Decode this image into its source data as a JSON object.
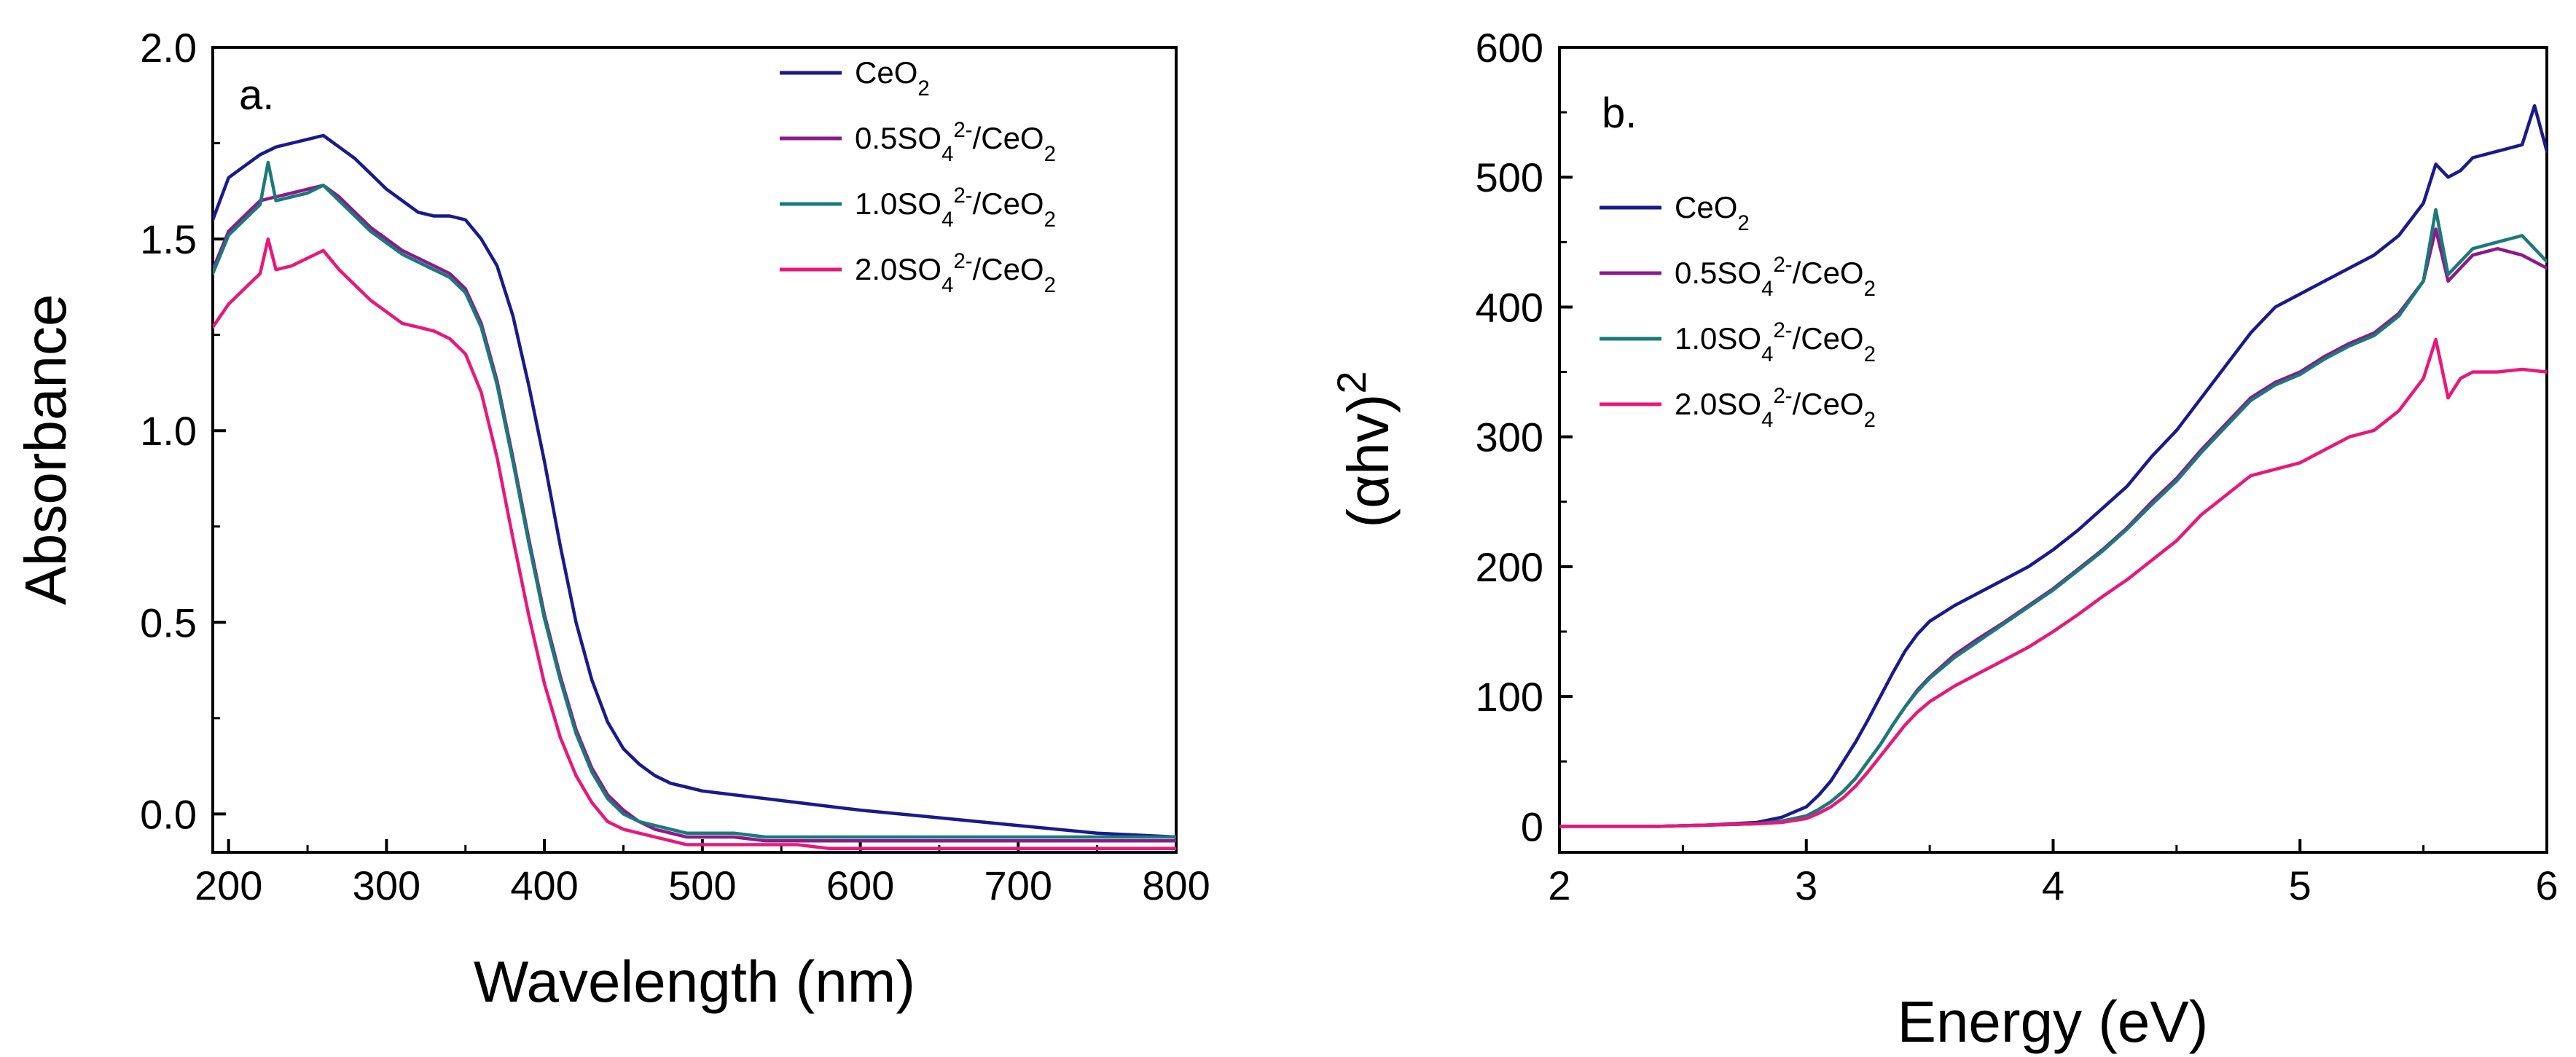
{
  "chart_data": [
    {
      "panel": "a.",
      "type": "line",
      "xlabel": "Wavelength (nm)",
      "ylabel": "Absorbance",
      "xlim": [
        190,
        800
      ],
      "ylim": [
        -0.1,
        2.0
      ],
      "xticks": [
        200,
        300,
        400,
        500,
        600,
        700,
        800
      ],
      "yticks": [
        0.0,
        0.5,
        1.0,
        1.5,
        2.0
      ],
      "xtick_labels": [
        "200",
        "300",
        "400",
        "500",
        "600",
        "700",
        "800"
      ],
      "ytick_labels": [
        "0.0",
        "0.5",
        "1.0",
        "1.5",
        "2.0"
      ],
      "legend_position": "top-right",
      "series": [
        {
          "name": "CeO2",
          "label_parts": [
            [
              "CeO",
              ""
            ],
            [
              "2",
              "sub"
            ]
          ],
          "color": "#1a1a8c",
          "x": [
            190,
            200,
            210,
            220,
            230,
            240,
            250,
            260,
            270,
            280,
            290,
            300,
            310,
            320,
            330,
            340,
            350,
            360,
            370,
            380,
            390,
            400,
            410,
            420,
            430,
            440,
            450,
            460,
            470,
            480,
            490,
            500,
            520,
            540,
            560,
            580,
            600,
            650,
            700,
            750,
            800
          ],
          "y": [
            1.55,
            1.66,
            1.69,
            1.72,
            1.74,
            1.75,
            1.76,
            1.77,
            1.74,
            1.71,
            1.67,
            1.63,
            1.6,
            1.57,
            1.56,
            1.56,
            1.55,
            1.5,
            1.43,
            1.3,
            1.12,
            0.92,
            0.7,
            0.5,
            0.35,
            0.24,
            0.17,
            0.13,
            0.1,
            0.08,
            0.07,
            0.06,
            0.05,
            0.04,
            0.03,
            0.02,
            0.01,
            -0.01,
            -0.03,
            -0.05,
            -0.06
          ]
        },
        {
          "name": "0.5SO4 2-/CeO2",
          "label_parts": [
            [
              "0.5SO",
              ""
            ],
            [
              "4",
              "sub"
            ],
            [
              "2-",
              "sup"
            ],
            [
              "/CeO",
              ""
            ],
            [
              "2",
              "sub"
            ]
          ],
          "color": "#8b1a8b",
          "x": [
            190,
            200,
            210,
            220,
            230,
            240,
            250,
            260,
            270,
            280,
            290,
            300,
            310,
            320,
            330,
            340,
            350,
            360,
            370,
            380,
            390,
            400,
            410,
            420,
            430,
            440,
            450,
            460,
            470,
            480,
            490,
            500,
            520,
            540,
            560,
            580,
            600,
            650,
            700,
            750,
            800
          ],
          "y": [
            1.42,
            1.52,
            1.56,
            1.6,
            1.61,
            1.62,
            1.63,
            1.64,
            1.61,
            1.57,
            1.53,
            1.5,
            1.47,
            1.45,
            1.43,
            1.41,
            1.37,
            1.28,
            1.13,
            0.93,
            0.72,
            0.52,
            0.36,
            0.22,
            0.12,
            0.05,
            0.01,
            -0.02,
            -0.04,
            -0.05,
            -0.06,
            -0.06,
            -0.06,
            -0.07,
            -0.07,
            -0.07,
            -0.07,
            -0.07,
            -0.07,
            -0.07,
            -0.07
          ]
        },
        {
          "name": "1.0SO4 2-/CeO2",
          "label_parts": [
            [
              "1.0SO",
              ""
            ],
            [
              "4",
              "sub"
            ],
            [
              "2-",
              "sup"
            ],
            [
              "/CeO",
              ""
            ],
            [
              "2",
              "sub"
            ]
          ],
          "color": "#1a7a7a",
          "x": [
            190,
            200,
            210,
            220,
            225,
            230,
            240,
            250,
            260,
            270,
            280,
            290,
            300,
            310,
            320,
            330,
            340,
            350,
            360,
            370,
            380,
            390,
            400,
            410,
            420,
            430,
            440,
            450,
            460,
            470,
            480,
            490,
            500,
            520,
            540,
            560,
            580,
            600,
            650,
            700,
            750,
            800
          ],
          "y": [
            1.41,
            1.51,
            1.55,
            1.59,
            1.7,
            1.6,
            1.61,
            1.62,
            1.64,
            1.6,
            1.56,
            1.52,
            1.49,
            1.46,
            1.44,
            1.42,
            1.4,
            1.36,
            1.27,
            1.12,
            0.92,
            0.71,
            0.51,
            0.35,
            0.21,
            0.11,
            0.04,
            0.0,
            -0.02,
            -0.03,
            -0.04,
            -0.05,
            -0.05,
            -0.05,
            -0.06,
            -0.06,
            -0.06,
            -0.06,
            -0.06,
            -0.06,
            -0.06,
            -0.06
          ]
        },
        {
          "name": "2.0SO4 2-/CeO2",
          "label_parts": [
            [
              "2.0SO",
              ""
            ],
            [
              "4",
              "sub"
            ],
            [
              "2-",
              "sup"
            ],
            [
              "/CeO",
              ""
            ],
            [
              "2",
              "sub"
            ]
          ],
          "color": "#e6197a",
          "x": [
            190,
            200,
            210,
            220,
            225,
            230,
            240,
            250,
            260,
            270,
            280,
            290,
            300,
            310,
            320,
            330,
            340,
            350,
            360,
            370,
            380,
            390,
            400,
            410,
            420,
            430,
            440,
            450,
            460,
            470,
            480,
            490,
            500,
            520,
            540,
            560,
            580,
            600,
            650,
            700,
            750,
            800
          ],
          "y": [
            1.27,
            1.33,
            1.37,
            1.41,
            1.5,
            1.42,
            1.43,
            1.45,
            1.47,
            1.42,
            1.38,
            1.34,
            1.31,
            1.28,
            1.27,
            1.26,
            1.24,
            1.2,
            1.1,
            0.93,
            0.72,
            0.52,
            0.34,
            0.2,
            0.1,
            0.03,
            -0.02,
            -0.04,
            -0.05,
            -0.06,
            -0.07,
            -0.08,
            -0.08,
            -0.08,
            -0.08,
            -0.08,
            -0.09,
            -0.09,
            -0.09,
            -0.09,
            -0.09,
            -0.09
          ]
        }
      ]
    },
    {
      "panel": "b.",
      "type": "line",
      "xlabel": "Energy (eV)",
      "ylabel_parts": [
        [
          "(",
          ""
        ],
        [
          "α",
          ""
        ],
        [
          "hv)",
          ""
        ],
        [
          "2",
          "sup"
        ]
      ],
      "xlim": [
        2,
        6
      ],
      "ylim": [
        -20,
        600
      ],
      "xticks": [
        2,
        3,
        4,
        5,
        6
      ],
      "yticks": [
        0,
        100,
        200,
        300,
        400,
        500,
        600
      ],
      "xtick_labels": [
        "2",
        "3",
        "4",
        "5",
        "6"
      ],
      "ytick_labels": [
        "0",
        "100",
        "200",
        "300",
        "400",
        "500",
        "600"
      ],
      "legend_position": "top-left",
      "series": [
        {
          "name": "CeO2",
          "label_parts": [
            [
              "CeO",
              ""
            ],
            [
              "2",
              "sub"
            ]
          ],
          "color": "#1a1a8c",
          "x": [
            2.0,
            2.4,
            2.6,
            2.8,
            2.9,
            3.0,
            3.05,
            3.1,
            3.15,
            3.2,
            3.25,
            3.3,
            3.35,
            3.4,
            3.45,
            3.5,
            3.6,
            3.7,
            3.8,
            3.9,
            4.0,
            4.1,
            4.2,
            4.3,
            4.4,
            4.5,
            4.6,
            4.7,
            4.8,
            4.9,
            5.0,
            5.1,
            5.2,
            5.3,
            5.4,
            5.5,
            5.55,
            5.6,
            5.65,
            5.7,
            5.8,
            5.9,
            5.95,
            6.0
          ],
          "y": [
            0,
            0,
            1,
            3,
            7,
            15,
            24,
            35,
            50,
            65,
            82,
            100,
            118,
            135,
            148,
            158,
            170,
            180,
            190,
            200,
            213,
            228,
            245,
            262,
            285,
            305,
            330,
            355,
            380,
            400,
            410,
            420,
            430,
            440,
            455,
            480,
            510,
            500,
            505,
            515,
            520,
            525,
            555,
            520
          ]
        },
        {
          "name": "0.5SO4 2-/CeO2",
          "label_parts": [
            [
              "0.5SO",
              ""
            ],
            [
              "4",
              "sub"
            ],
            [
              "2-",
              "sup"
            ],
            [
              "/CeO",
              ""
            ],
            [
              "2",
              "sub"
            ]
          ],
          "color": "#8b1a8b",
          "x": [
            2.0,
            2.4,
            2.6,
            2.8,
            2.9,
            3.0,
            3.05,
            3.1,
            3.15,
            3.2,
            3.25,
            3.3,
            3.35,
            3.4,
            3.45,
            3.5,
            3.6,
            3.7,
            3.8,
            3.9,
            4.0,
            4.1,
            4.2,
            4.3,
            4.4,
            4.5,
            4.6,
            4.7,
            4.8,
            4.9,
            5.0,
            5.1,
            5.2,
            5.3,
            5.4,
            5.5,
            5.55,
            5.6,
            5.65,
            5.7,
            5.8,
            5.9,
            6.0
          ],
          "y": [
            0,
            0,
            1,
            2,
            4,
            8,
            13,
            19,
            27,
            37,
            50,
            63,
            78,
            92,
            105,
            115,
            132,
            145,
            157,
            170,
            183,
            198,
            213,
            230,
            250,
            268,
            290,
            310,
            330,
            342,
            350,
            362,
            372,
            380,
            395,
            420,
            460,
            420,
            430,
            440,
            445,
            440,
            430
          ]
        },
        {
          "name": "1.0SO4 2-/CeO2",
          "label_parts": [
            [
              "1.0SO",
              ""
            ],
            [
              "4",
              "sub"
            ],
            [
              "2-",
              "sup"
            ],
            [
              "/CeO",
              ""
            ],
            [
              "2",
              "sub"
            ]
          ],
          "color": "#1a7a7a",
          "x": [
            2.0,
            2.4,
            2.6,
            2.8,
            2.9,
            3.0,
            3.05,
            3.1,
            3.15,
            3.2,
            3.25,
            3.3,
            3.35,
            3.4,
            3.45,
            3.5,
            3.6,
            3.7,
            3.8,
            3.9,
            4.0,
            4.1,
            4.2,
            4.3,
            4.4,
            4.5,
            4.6,
            4.7,
            4.8,
            4.9,
            5.0,
            5.1,
            5.2,
            5.3,
            5.4,
            5.5,
            5.55,
            5.6,
            5.65,
            5.7,
            5.8,
            5.9,
            6.0
          ],
          "y": [
            0,
            0,
            1,
            2,
            4,
            8,
            13,
            19,
            27,
            37,
            50,
            63,
            78,
            92,
            104,
            114,
            130,
            143,
            156,
            169,
            182,
            197,
            212,
            229,
            248,
            266,
            288,
            308,
            328,
            340,
            348,
            360,
            370,
            378,
            393,
            420,
            475,
            425,
            435,
            445,
            450,
            455,
            435
          ]
        },
        {
          "name": "2.0SO4 2-/CeO2",
          "label_parts": [
            [
              "2.0SO",
              ""
            ],
            [
              "4",
              "sub"
            ],
            [
              "2-",
              "sup"
            ],
            [
              "/CeO",
              ""
            ],
            [
              "2",
              "sub"
            ]
          ],
          "color": "#e6197a",
          "x": [
            2.0,
            2.4,
            2.6,
            2.8,
            2.9,
            3.0,
            3.05,
            3.1,
            3.15,
            3.2,
            3.25,
            3.3,
            3.35,
            3.4,
            3.45,
            3.5,
            3.6,
            3.7,
            3.8,
            3.9,
            4.0,
            4.1,
            4.2,
            4.3,
            4.4,
            4.5,
            4.6,
            4.7,
            4.8,
            4.9,
            5.0,
            5.1,
            5.2,
            5.3,
            5.4,
            5.5,
            5.55,
            5.6,
            5.65,
            5.7,
            5.8,
            5.9,
            6.0
          ],
          "y": [
            0,
            0,
            1,
            2,
            3,
            6,
            10,
            15,
            22,
            31,
            42,
            54,
            66,
            78,
            88,
            96,
            108,
            118,
            128,
            138,
            150,
            163,
            177,
            190,
            205,
            220,
            240,
            255,
            270,
            275,
            280,
            290,
            300,
            305,
            320,
            345,
            375,
            330,
            345,
            350,
            350,
            352,
            350
          ]
        }
      ]
    }
  ]
}
